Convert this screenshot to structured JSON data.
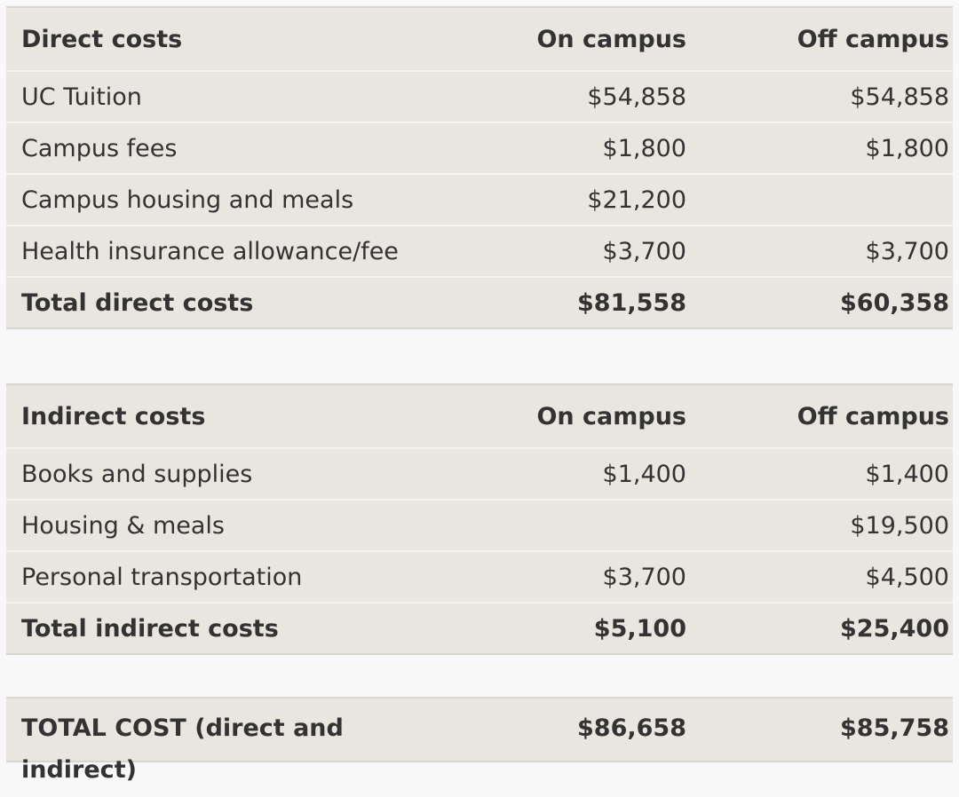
{
  "direct": {
    "header": [
      "Direct costs",
      "On campus",
      "Off campus"
    ],
    "rows": [
      [
        "UC Tuition",
        "$54,858",
        "$54,858"
      ],
      [
        "Campus fees",
        "$1,800",
        "$1,800"
      ],
      [
        "Campus housing and meals",
        "$21,200",
        ""
      ],
      [
        "Health insurance allowance/fee",
        "$3,700",
        "$3,700"
      ]
    ],
    "total": [
      "Total direct costs",
      "$81,558",
      "$60,358"
    ]
  },
  "indirect": {
    "header": [
      "Indirect costs",
      "On campus",
      "Off campus"
    ],
    "rows": [
      [
        "Books and supplies",
        "$1,400",
        "$1,400"
      ],
      [
        "Housing & meals",
        "",
        "$19,500"
      ],
      [
        "Personal transportation",
        "$3,700",
        "$4,500"
      ]
    ],
    "total": [
      "Total indirect costs",
      "$5,100",
      "$25,400"
    ]
  },
  "grand_total": [
    "TOTAL COST (direct and indirect)",
    "$86,658",
    "$85,758"
  ]
}
